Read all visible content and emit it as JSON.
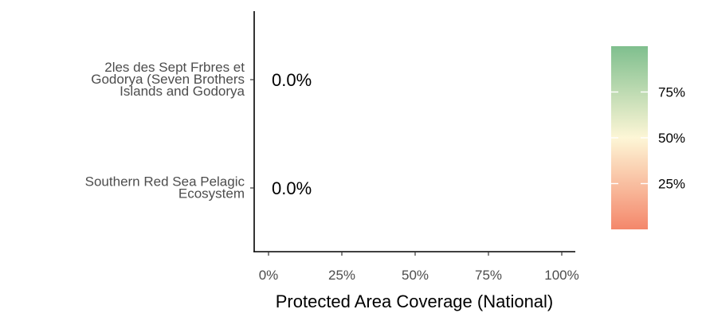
{
  "chart_data": {
    "type": "bar",
    "orientation": "horizontal",
    "categories": [
      "2les des Sept Frbres et Godorya (Seven Brothers Islands and Godorya",
      "Southern Red Sea Pelagic Ecosystem"
    ],
    "category_lines": [
      [
        "2les des Sept Frbres et",
        "Godorya (Seven Brothers",
        "Islands and Godorya"
      ],
      [
        "Southern Red Sea Pelagic",
        "Ecosystem"
      ]
    ],
    "values": [
      0.0,
      0.0
    ],
    "data_labels": [
      "0.0%",
      "0.0%"
    ],
    "xlabel": "Protected Area Coverage (National)",
    "ylabel": "",
    "xlim": [
      0,
      100
    ],
    "x_ticks": [
      0,
      25,
      50,
      75,
      100
    ],
    "x_tick_labels": [
      "0%",
      "25%",
      "50%",
      "75%",
      "100%"
    ],
    "grid": false,
    "legend": {
      "type": "colorbar",
      "placement": "right",
      "tick_values": [
        25,
        50,
        75
      ],
      "tick_labels": [
        "25%",
        "50%",
        "75%"
      ],
      "colors": {
        "low": "#f4876b",
        "mid": "#fdf6d6",
        "high": "#7fbf8e"
      }
    }
  }
}
